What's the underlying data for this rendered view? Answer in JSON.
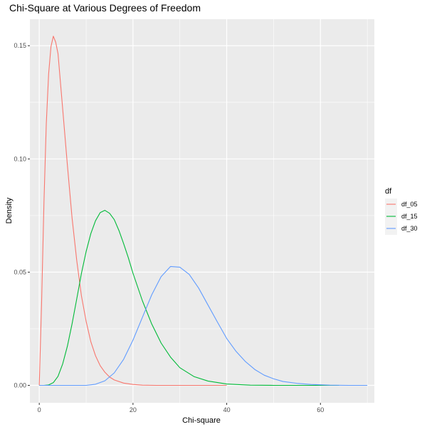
{
  "chart_data": {
    "type": "line",
    "title": "Chi-Square at Various Degrees of Freedom",
    "xlabel": "Chi-square",
    "ylabel": "Density",
    "xlim": [
      -2,
      71.5
    ],
    "ylim": [
      -0.0077,
      0.1617
    ],
    "x_ticks": [
      0,
      20,
      40,
      60
    ],
    "x_tick_labels": [
      "0",
      "20",
      "40",
      "60"
    ],
    "y_ticks": [
      0,
      0.05,
      0.1,
      0.15
    ],
    "y_tick_labels": [
      "0.00",
      "0.05",
      "0.10",
      "0.15"
    ],
    "x_minor_ticks": [
      10,
      30,
      50,
      70
    ],
    "y_minor_ticks": [
      0.025,
      0.075,
      0.125
    ],
    "grid": true,
    "legend": {
      "title": "df",
      "position": "right",
      "entries": [
        "df_05",
        "df_15",
        "df_30"
      ]
    },
    "colors": {
      "panel": "#ebebeb",
      "grid": "#ffffff",
      "df_05": "#f8766d",
      "df_15": "#00ba38",
      "df_30": "#619cff"
    },
    "series": [
      {
        "name": "df_05",
        "color": "#f8766d",
        "x": [
          0,
          0.5,
          1,
          1.5,
          2,
          2.5,
          3,
          3.5,
          4,
          5,
          6,
          7,
          8,
          9,
          10,
          11,
          12,
          13,
          14,
          15,
          16,
          18,
          20,
          22,
          25,
          28,
          32,
          36,
          40
        ],
        "y": [
          0,
          0.0366,
          0.0807,
          0.1156,
          0.1376,
          0.1496,
          0.1542,
          0.1516,
          0.1465,
          0.122,
          0.0973,
          0.0739,
          0.0551,
          0.0395,
          0.0283,
          0.0193,
          0.0131,
          0.0087,
          0.0058,
          0.0037,
          0.0024,
          0.001,
          0.0004,
          0.0001,
          0.0,
          0.0,
          0.0,
          0.0,
          0.0
        ]
      },
      {
        "name": "df_15",
        "color": "#00ba38",
        "x": [
          0,
          1,
          2,
          3,
          4,
          5,
          6,
          7,
          8,
          9,
          10,
          11,
          12,
          13,
          14,
          15,
          16,
          17,
          18,
          19,
          20,
          22,
          24,
          26,
          28,
          30,
          33,
          36,
          40,
          45,
          50,
          55,
          60,
          64
        ],
        "y": [
          0,
          0.0,
          0.0002,
          0.0012,
          0.004,
          0.0095,
          0.0173,
          0.0272,
          0.0382,
          0.0495,
          0.0591,
          0.067,
          0.0727,
          0.0763,
          0.0773,
          0.076,
          0.0732,
          0.0684,
          0.0626,
          0.0564,
          0.0495,
          0.0374,
          0.0271,
          0.0187,
          0.0125,
          0.0078,
          0.0039,
          0.0019,
          0.0006,
          0.0001,
          0.0,
          0.0,
          0.0,
          0.0
        ]
      },
      {
        "name": "df_30",
        "color": "#619cff",
        "x": [
          0,
          5,
          8,
          10,
          12,
          14,
          16,
          18,
          20,
          22,
          24,
          26,
          28,
          30,
          32,
          34,
          36,
          38,
          40,
          42,
          44,
          46,
          48,
          50,
          52,
          55,
          58,
          62,
          66,
          70
        ],
        "y": [
          0,
          0.0,
          0.0,
          0.0,
          0.0005,
          0.002,
          0.0055,
          0.0115,
          0.02,
          0.03,
          0.04,
          0.048,
          0.0525,
          0.0522,
          0.049,
          0.043,
          0.0355,
          0.028,
          0.0207,
          0.015,
          0.0105,
          0.007,
          0.0045,
          0.0029,
          0.0017,
          0.0009,
          0.0004,
          0.0001,
          0.0,
          0.0
        ]
      }
    ]
  }
}
